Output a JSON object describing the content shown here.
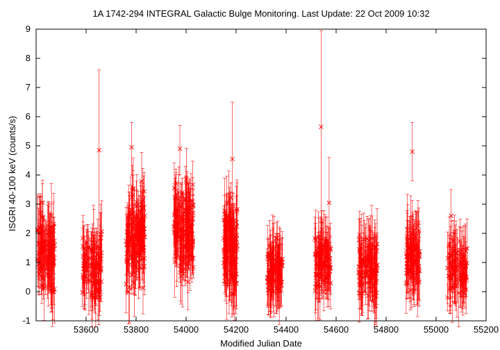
{
  "chart_data": {
    "type": "scatter",
    "title": "1A 1742-294   INTEGRAL Galactic Bulge Monitoring.  Last Update: 22 Oct 2009 10:32",
    "xlabel": "Modified Julian Date",
    "ylabel": "ISGRI 40-100 keV (counts/s)",
    "xlim": [
      53400,
      55200
    ],
    "ylim": [
      -1,
      9
    ],
    "xticks": [
      "53600",
      "53800",
      "54000",
      "54200",
      "54400",
      "54600",
      "54800",
      "55000",
      "55200"
    ],
    "xtick_values": [
      53600,
      53800,
      54000,
      54200,
      54400,
      54600,
      54800,
      55000,
      55200
    ],
    "yticks": [
      "-1",
      "0",
      "1",
      "2",
      "3",
      "4",
      "5",
      "6",
      "7",
      "8",
      "9"
    ],
    "ytick_values": [
      -1,
      0,
      1,
      2,
      3,
      4,
      5,
      6,
      7,
      8,
      9
    ],
    "grid": false,
    "marker": "x",
    "color": "#ff0000",
    "error_bars": true,
    "notable_points": [
      {
        "x": 53652,
        "y": 4.85,
        "err_hi": 7.6,
        "err_lo": 2.0
      },
      {
        "x": 54540,
        "y": 5.65,
        "err_hi": 8.95,
        "err_lo": 2.4
      },
      {
        "x": 54572,
        "y": 3.05,
        "err_hi": 4.6,
        "err_lo": 1.6
      },
      {
        "x": 53782,
        "y": 4.95,
        "err_hi": 5.8,
        "err_lo": 4.0
      },
      {
        "x": 53975,
        "y": 4.9,
        "err_hi": 5.7,
        "err_lo": 4.0
      },
      {
        "x": 54185,
        "y": 4.55,
        "err_hi": 6.5,
        "err_lo": 3.4
      },
      {
        "x": 54905,
        "y": 4.8,
        "err_hi": 5.8,
        "err_lo": 3.8
      },
      {
        "x": 55060,
        "y": 2.6,
        "err_hi": 3.5,
        "err_lo": 1.8
      }
    ],
    "seasons": [
      {
        "x_range": [
          53405,
          53475
        ],
        "y_mean": 1.3,
        "y_spread": 1.0,
        "y_min": -0.2,
        "y_max": 3.4,
        "n": 110
      },
      {
        "x_range": [
          53585,
          53665
        ],
        "y_mean": 0.9,
        "y_spread": 0.8,
        "y_min": -0.2,
        "y_max": 2.9,
        "n": 100
      },
      {
        "x_range": [
          53760,
          53835
        ],
        "y_mean": 1.9,
        "y_spread": 1.1,
        "y_min": 0.0,
        "y_max": 4.4,
        "n": 140
      },
      {
        "x_range": [
          53950,
          54030
        ],
        "y_mean": 2.0,
        "y_spread": 1.1,
        "y_min": 0.0,
        "y_max": 4.8,
        "n": 140
      },
      {
        "x_range": [
          54150,
          54205
        ],
        "y_mean": 1.5,
        "y_spread": 1.0,
        "y_min": -0.1,
        "y_max": 4.4,
        "n": 120
      },
      {
        "x_range": [
          54325,
          54385
        ],
        "y_mean": 0.8,
        "y_spread": 0.5,
        "y_min": -0.1,
        "y_max": 2.1,
        "n": 90
      },
      {
        "x_range": [
          54515,
          54580
        ],
        "y_mean": 1.0,
        "y_spread": 0.7,
        "y_min": -0.2,
        "y_max": 2.6,
        "n": 90
      },
      {
        "x_range": [
          54690,
          54765
        ],
        "y_mean": 0.9,
        "y_spread": 0.7,
        "y_min": -0.2,
        "y_max": 2.9,
        "n": 110
      },
      {
        "x_range": [
          54880,
          54935
        ],
        "y_mean": 1.2,
        "y_spread": 0.8,
        "y_min": 0.0,
        "y_max": 3.0,
        "n": 90
      },
      {
        "x_range": [
          55045,
          55125
        ],
        "y_mean": 0.8,
        "y_spread": 0.6,
        "y_min": -0.2,
        "y_max": 2.1,
        "n": 90
      }
    ]
  }
}
